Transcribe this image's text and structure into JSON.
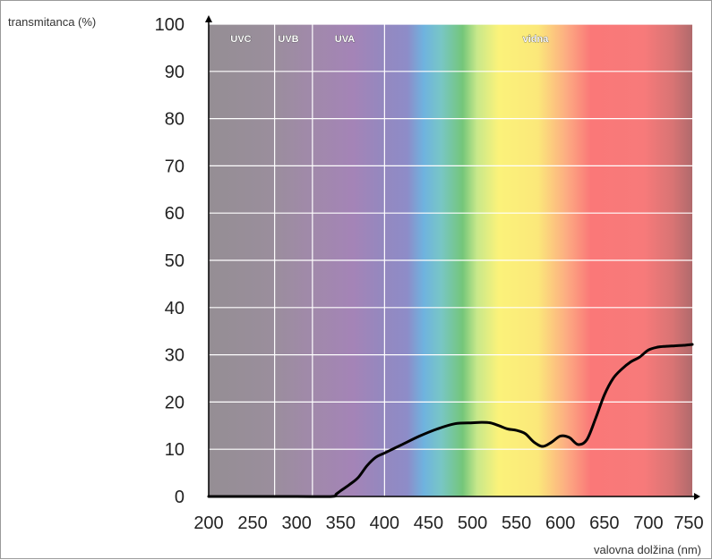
{
  "chart_data": {
    "type": "line",
    "ylabel": "transmitanca  (%)",
    "xlabel": "valovna dolžina (nm)",
    "xlim": [
      200,
      750
    ],
    "ylim": [
      0,
      100
    ],
    "x_ticks": [
      200,
      250,
      300,
      350,
      400,
      450,
      500,
      550,
      600,
      650,
      700,
      750
    ],
    "y_ticks": [
      0,
      10,
      20,
      30,
      40,
      50,
      60,
      70,
      80,
      90,
      100
    ],
    "grid": "horizontal",
    "bands": [
      {
        "label": "UVC",
        "from": 200,
        "to": 275
      },
      {
        "label": "UVB",
        "from": 275,
        "to": 318
      },
      {
        "label": "UVA",
        "from": 318,
        "to": 400
      },
      {
        "label": "vidna",
        "from": 400,
        "to": 750
      }
    ],
    "series": [
      {
        "color": "#000000",
        "x": [
          200,
          250,
          300,
          340,
          345,
          350,
          360,
          370,
          380,
          390,
          400,
          420,
          440,
          460,
          480,
          500,
          510,
          520,
          530,
          540,
          550,
          560,
          570,
          580,
          590,
          600,
          610,
          620,
          630,
          640,
          650,
          660,
          670,
          680,
          690,
          700,
          710,
          720,
          730,
          740,
          750
        ],
        "y": [
          0,
          0,
          0,
          0,
          0.5,
          1.2,
          2.5,
          4,
          6.5,
          8.3,
          9.2,
          11,
          12.8,
          14.3,
          15.4,
          15.6,
          15.7,
          15.6,
          15,
          14.3,
          14,
          13.3,
          11.5,
          10.6,
          11.5,
          12.8,
          12.5,
          11,
          12,
          16.5,
          21.5,
          25,
          27,
          28.5,
          29.5,
          31,
          31.6,
          31.8,
          31.9,
          32.0,
          32.2
        ]
      }
    ]
  }
}
